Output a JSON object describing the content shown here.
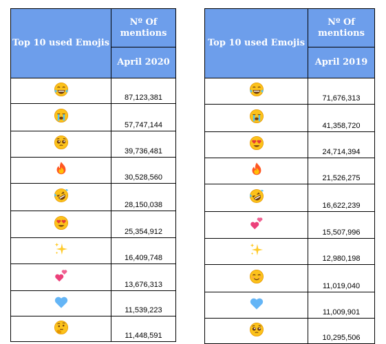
{
  "tables": [
    {
      "header_left": "Top 10 used Emojis",
      "header_top": "Nº Of mentions",
      "header_sub": "April 2020",
      "rows": [
        {
          "emoji": "😂",
          "icon": "tears-of-joy-icon",
          "value": "87,123,381"
        },
        {
          "emoji": "😭",
          "icon": "crying-face-icon",
          "value": "57,747,144"
        },
        {
          "emoji": "🥺",
          "icon": "pleading-face-icon",
          "value": "39,736,481"
        },
        {
          "emoji": "🔥",
          "icon": "fire-icon",
          "value": "30,528,560"
        },
        {
          "emoji": "🤣",
          "icon": "rolling-laughing-icon",
          "value": "28,150,038"
        },
        {
          "emoji": "😍",
          "icon": "heart-eyes-icon",
          "value": "25,354,912"
        },
        {
          "emoji": "✨",
          "icon": "sparkles-icon",
          "value": "16,409,748"
        },
        {
          "emoji": "💕",
          "icon": "two-hearts-icon",
          "value": "13,676,313"
        },
        {
          "emoji": "💙",
          "icon": "blue-heart-icon",
          "value": "11,539,223"
        },
        {
          "emoji": "🤔",
          "icon": "thinking-face-icon",
          "value": "11,448,591"
        }
      ]
    },
    {
      "header_left": "Top 10 used Emojis",
      "header_top": "Nº Of mentions",
      "header_sub": "April 2019",
      "rows": [
        {
          "emoji": "😂",
          "icon": "tears-of-joy-icon",
          "value": "71,676,313"
        },
        {
          "emoji": "😭",
          "icon": "crying-face-icon",
          "value": "41,358,720"
        },
        {
          "emoji": "😍",
          "icon": "heart-eyes-icon",
          "value": "24,714,394"
        },
        {
          "emoji": "🔥",
          "icon": "fire-icon",
          "value": "21,526,275"
        },
        {
          "emoji": "🤣",
          "icon": "rolling-laughing-icon",
          "value": "16,622,239"
        },
        {
          "emoji": "💕",
          "icon": "two-hearts-icon",
          "value": "15,507,996"
        },
        {
          "emoji": "✨",
          "icon": "sparkles-icon",
          "value": "12,980,198"
        },
        {
          "emoji": "😊",
          "icon": "smiling-face-icon",
          "value": "11,019,040"
        },
        {
          "emoji": "💙",
          "icon": "blue-heart-icon",
          "value": "11,009,901"
        },
        {
          "emoji": "🥺",
          "icon": "pleading-face-icon",
          "value": "10,295,506"
        }
      ]
    }
  ],
  "colors": {
    "header_bg": "#6d9eeb",
    "header_text": "#ffffff",
    "border": "#000000"
  }
}
